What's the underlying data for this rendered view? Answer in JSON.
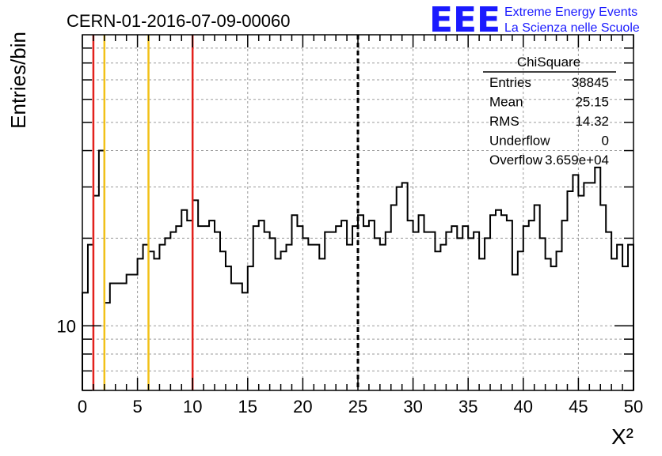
{
  "header": {
    "run_title": "CERN-01-2016-07-09-00060",
    "logo_text": "EEE",
    "logo_line1": "Extreme Energy Events",
    "logo_line2": "La Scienza nelle Scuole"
  },
  "stats_box": {
    "title": "ChiSquare",
    "rows": [
      {
        "label": "Entries",
        "value": "38845"
      },
      {
        "label": "Mean",
        "value": "25.15"
      },
      {
        "label": "RMS",
        "value": "14.32"
      },
      {
        "label": "Underflow",
        "value": "0"
      },
      {
        "label": "Overflow",
        "value": "3.659e+04"
      }
    ]
  },
  "colors": {
    "histogram": "#000000",
    "red_line": "#e3211c",
    "yellow_line": "#f2c118",
    "grid": "#9a9a9a",
    "logo_blue": "#1a1aff"
  },
  "chart_data": {
    "type": "histogram",
    "xlabel": "X²",
    "ylabel": "Entries/bin",
    "xlim": [
      0,
      50
    ],
    "ylim": [
      6,
      100
    ],
    "y_scale": "log",
    "x_ticks": [
      0,
      5,
      10,
      15,
      20,
      25,
      30,
      35,
      40,
      45,
      50
    ],
    "y_tick_labels": [
      {
        "value": 10,
        "label": "10"
      }
    ],
    "grid": true,
    "bin_width": 0.5,
    "bin_start": 0,
    "values": [
      13,
      19,
      28,
      40,
      12,
      14,
      14,
      14,
      15,
      15,
      17,
      19,
      18,
      17,
      19,
      20,
      21,
      22,
      25,
      23,
      27,
      22,
      22,
      23,
      21,
      18,
      16,
      14,
      14,
      13,
      16,
      22,
      23,
      21,
      20,
      17,
      18,
      19,
      24,
      22,
      20,
      19,
      19,
      17,
      21,
      21,
      22,
      23,
      19,
      22,
      24,
      22,
      23,
      20,
      19,
      21,
      26,
      30,
      31,
      23,
      21,
      24,
      21,
      21,
      18,
      19,
      21,
      22,
      20,
      22,
      20,
      21,
      17,
      20,
      24,
      25,
      24,
      23,
      15,
      18,
      22,
      23,
      26,
      20,
      17,
      16,
      18,
      23,
      29,
      33,
      28,
      31,
      31,
      35,
      26,
      21,
      17,
      19,
      16,
      19
    ],
    "vertical_lines": [
      {
        "x": 1,
        "color": "red"
      },
      {
        "x": 2,
        "color": "yellow"
      },
      {
        "x": 6,
        "color": "yellow"
      },
      {
        "x": 10,
        "color": "red"
      },
      {
        "x": 25,
        "color": "black",
        "style": "dashed"
      }
    ]
  }
}
